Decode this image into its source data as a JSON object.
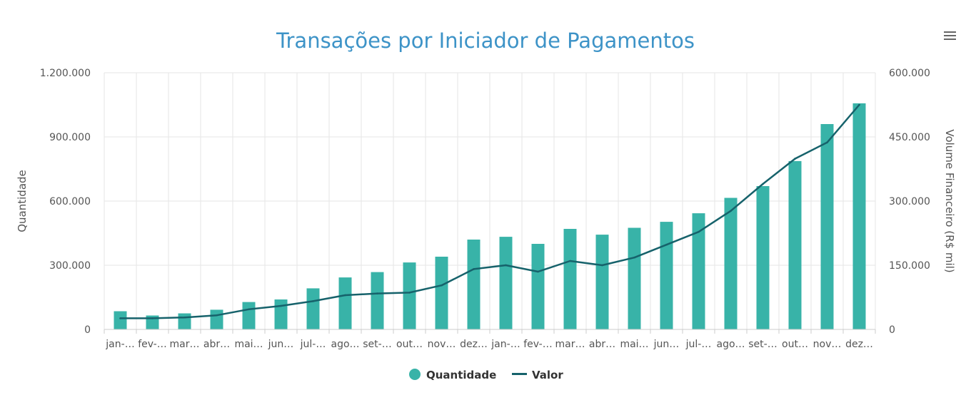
{
  "chart_data": {
    "type": "bar",
    "title": "Transações por Iniciador de Pagamentos",
    "categories": [
      "jan-…",
      "fev-…",
      "mar…",
      "abr…",
      "mai…",
      "jun…",
      "jul-…",
      "ago…",
      "set-…",
      "out…",
      "nov…",
      "dez…",
      "jan-…",
      "fev-…",
      "mar…",
      "abr…",
      "mai…",
      "jun…",
      "jul-…",
      "ago…",
      "set-…",
      "out…",
      "nov…",
      "dez…"
    ],
    "y_left": {
      "label": "Quantidade",
      "range": [
        0,
        1200000
      ],
      "ticks": [
        0,
        300000,
        600000,
        900000,
        1200000
      ],
      "tick_labels": [
        "0",
        "300.000",
        "600.000",
        "900.000",
        "1.200.000"
      ]
    },
    "y_right": {
      "label": "Volume Financeiro (R$ mil)",
      "range": [
        0,
        600000
      ],
      "ticks": [
        0,
        150000,
        300000,
        450000,
        600000
      ],
      "tick_labels": [
        "0",
        "150.000",
        "300.000",
        "450.000",
        "600.000"
      ]
    },
    "grid": true,
    "legend_position": "bottom-center",
    "series": [
      {
        "name": "Quantidade",
        "type": "bar",
        "axis": "left",
        "color": "#38b3a8",
        "values": [
          85000,
          65000,
          75000,
          92000,
          128000,
          140000,
          192000,
          243000,
          268000,
          313000,
          340000,
          420000,
          433000,
          400000,
          470000,
          443000,
          475000,
          503000,
          543000,
          615000,
          670000,
          787000,
          960000,
          1057000
        ]
      },
      {
        "name": "Valor",
        "type": "line",
        "axis": "right",
        "color": "#16626b",
        "values": [
          26000,
          26000,
          28000,
          33000,
          47000,
          55000,
          66000,
          80000,
          84000,
          86000,
          103000,
          141000,
          150000,
          135000,
          160000,
          150000,
          168000,
          198000,
          228000,
          277000,
          340000,
          399000,
          437000,
          525000
        ]
      }
    ]
  },
  "menu": {
    "icon": "hamburger-menu-icon"
  }
}
